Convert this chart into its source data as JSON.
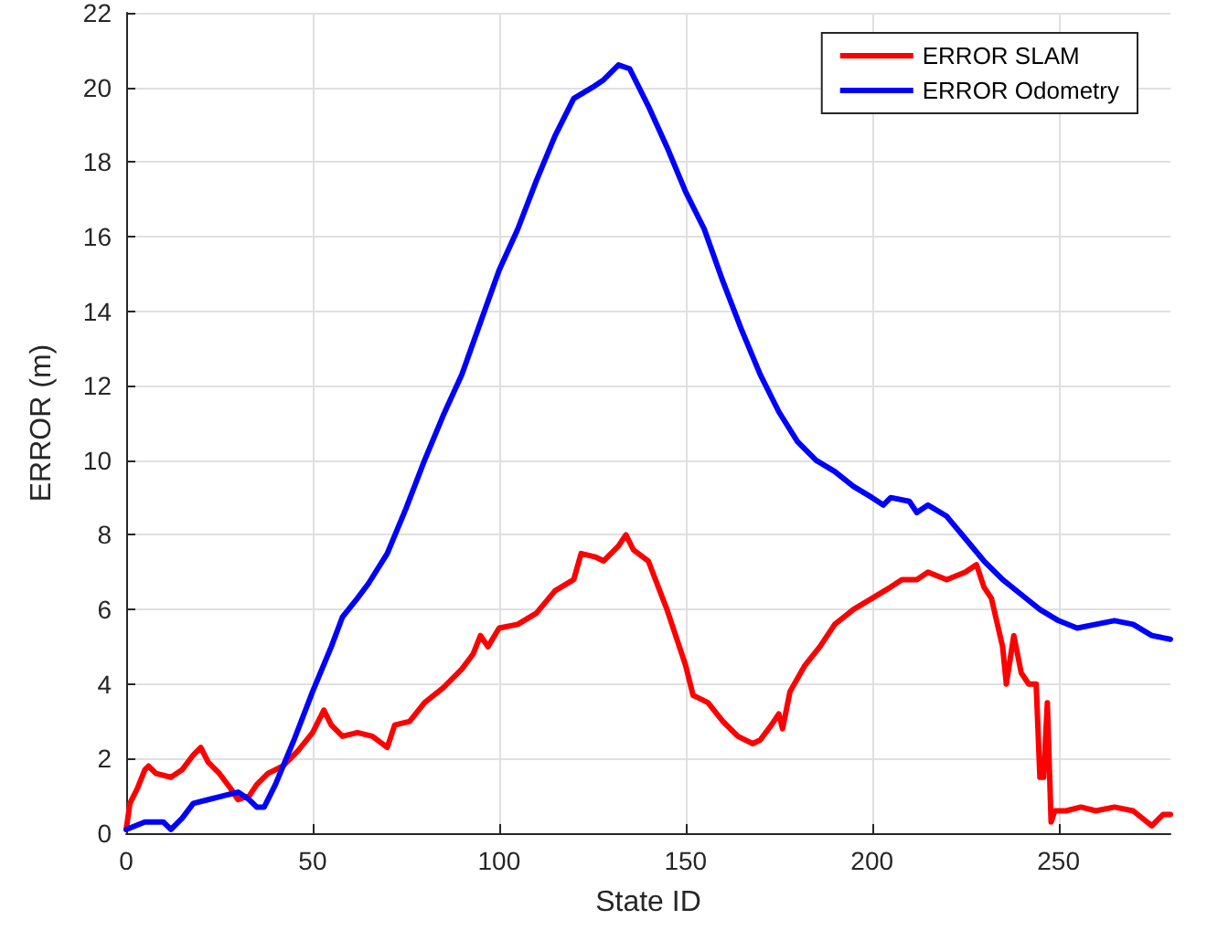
{
  "chart_data": {
    "type": "line",
    "xlabel": "State ID",
    "ylabel": "ERROR (m)",
    "xlim": [
      0,
      280
    ],
    "xticks": [
      0,
      50,
      100,
      150,
      200,
      250
    ],
    "ylim": [
      0,
      22
    ],
    "yticks": [
      0,
      2,
      4,
      6,
      8,
      10,
      12,
      14,
      16,
      18,
      20,
      22
    ],
    "grid": true,
    "legend": "top right",
    "marker": "none",
    "line_style": "solid",
    "series": [
      {
        "name": "ERROR SLAM",
        "color": "#ff0000",
        "x": [
          0,
          1,
          3,
          5,
          6,
          8,
          12,
          15,
          18,
          20,
          22,
          25,
          28,
          30,
          33,
          35,
          38,
          42,
          46,
          50,
          53,
          55,
          58,
          62,
          66,
          70,
          72,
          76,
          80,
          85,
          90,
          93,
          95,
          97,
          100,
          105,
          110,
          115,
          120,
          122,
          126,
          128,
          132,
          134,
          136,
          140,
          145,
          150,
          152,
          156,
          160,
          164,
          168,
          170,
          173,
          175,
          176,
          178,
          182,
          186,
          190,
          195,
          200,
          205,
          208,
          212,
          215,
          220,
          225,
          228,
          230,
          232,
          235,
          236,
          238,
          240,
          242,
          244,
          245,
          246,
          247,
          248,
          249,
          252,
          256,
          260,
          265,
          270,
          275,
          278,
          280
        ],
        "values": [
          0.1,
          0.8,
          1.2,
          1.7,
          1.8,
          1.6,
          1.5,
          1.7,
          2.1,
          2.3,
          1.9,
          1.6,
          1.2,
          0.9,
          1.0,
          1.3,
          1.6,
          1.8,
          2.2,
          2.7,
          3.3,
          2.9,
          2.6,
          2.7,
          2.6,
          2.3,
          2.9,
          3.0,
          3.5,
          3.9,
          4.4,
          4.8,
          5.3,
          5.0,
          5.5,
          5.6,
          5.9,
          6.5,
          6.8,
          7.5,
          7.4,
          7.3,
          7.7,
          8.0,
          7.6,
          7.3,
          6.0,
          4.5,
          3.7,
          3.5,
          3.0,
          2.6,
          2.4,
          2.5,
          2.9,
          3.2,
          2.8,
          3.8,
          4.5,
          5.0,
          5.6,
          6.0,
          6.3,
          6.6,
          6.8,
          6.8,
          7.0,
          6.8,
          7.0,
          7.2,
          6.6,
          6.3,
          5.0,
          4.0,
          5.3,
          4.3,
          4.0,
          4.0,
          1.5,
          1.5,
          3.5,
          0.3,
          0.6,
          0.6,
          0.7,
          0.6,
          0.7,
          0.6,
          0.2,
          0.5,
          0.5
        ]
      },
      {
        "name": "ERROR Odometry",
        "color": "#0000ff",
        "x": [
          0,
          5,
          10,
          12,
          15,
          18,
          22,
          26,
          30,
          33,
          35,
          37,
          40,
          45,
          50,
          55,
          58,
          62,
          65,
          70,
          75,
          80,
          85,
          90,
          95,
          100,
          105,
          110,
          115,
          120,
          125,
          128,
          132,
          135,
          140,
          145,
          150,
          155,
          160,
          165,
          170,
          175,
          180,
          185,
          190,
          195,
          200,
          203,
          205,
          210,
          212,
          215,
          220,
          225,
          230,
          235,
          240,
          245,
          250,
          255,
          260,
          265,
          270,
          275,
          280
        ],
        "values": [
          0.1,
          0.3,
          0.3,
          0.1,
          0.4,
          0.8,
          0.9,
          1.0,
          1.1,
          0.9,
          0.7,
          0.7,
          1.3,
          2.5,
          3.8,
          5.0,
          5.8,
          6.3,
          6.7,
          7.5,
          8.7,
          10.0,
          11.2,
          12.3,
          13.7,
          15.1,
          16.2,
          17.5,
          18.7,
          19.7,
          20.0,
          20.2,
          20.6,
          20.5,
          19.5,
          18.4,
          17.2,
          16.2,
          14.8,
          13.5,
          12.3,
          11.3,
          10.5,
          10.0,
          9.7,
          9.3,
          9.0,
          8.8,
          9.0,
          8.9,
          8.6,
          8.8,
          8.5,
          7.9,
          7.3,
          6.8,
          6.4,
          6.0,
          5.7,
          5.5,
          5.6,
          5.7,
          5.6,
          5.3,
          5.2
        ]
      }
    ]
  }
}
